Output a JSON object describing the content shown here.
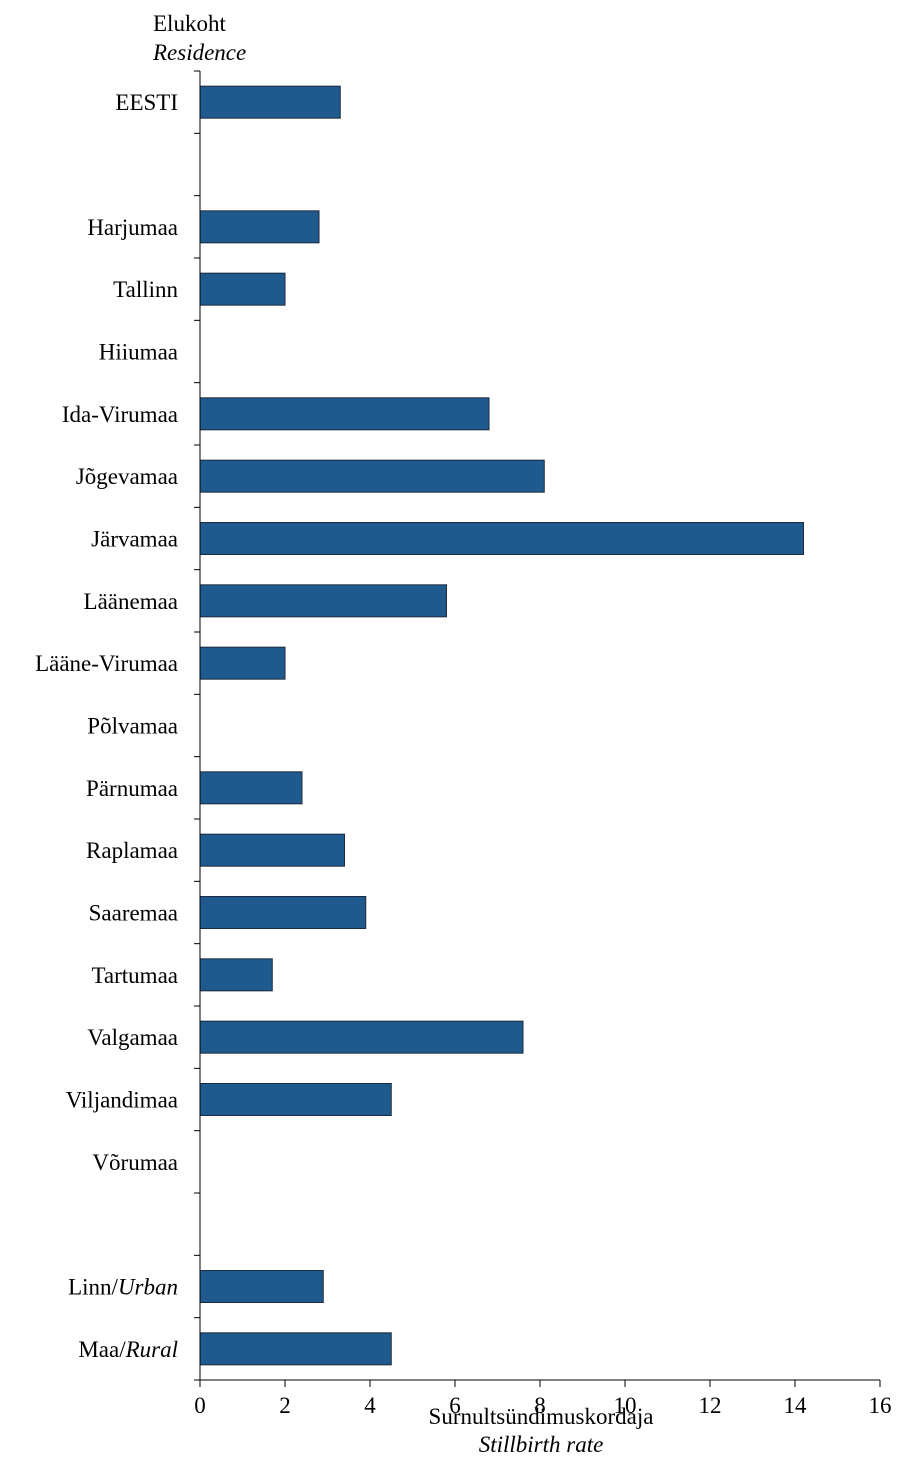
{
  "chart_data": {
    "type": "bar",
    "orientation": "horizontal",
    "y_axis_title": "Elukoht",
    "y_axis_title_en": "Residence",
    "xlabel": "Surnultsündimuskordaja",
    "xlabel_en": "Stillbirth rate",
    "xlim": [
      0,
      16
    ],
    "xticks": [
      0,
      2,
      4,
      6,
      8,
      10,
      12,
      14,
      16
    ],
    "grid": false,
    "bar_color": "#1f5a8f",
    "categories": [
      {
        "label": "EESTI",
        "label_en": "",
        "value": 3.3
      },
      {
        "label": "",
        "label_en": "",
        "value": null
      },
      {
        "label": "Harjumaa",
        "label_en": "",
        "value": 2.8
      },
      {
        "label": "Tallinn",
        "label_en": "",
        "value": 2.0
      },
      {
        "label": "Hiiumaa",
        "label_en": "",
        "value": null
      },
      {
        "label": "Ida-Virumaa",
        "label_en": "",
        "value": 6.8
      },
      {
        "label": "Jõgevamaa",
        "label_en": "",
        "value": 8.1
      },
      {
        "label": "Järvamaa",
        "label_en": "",
        "value": 14.2
      },
      {
        "label": "Läänemaa",
        "label_en": "",
        "value": 5.8
      },
      {
        "label": "Lääne-Virumaa",
        "label_en": "",
        "value": 2.0
      },
      {
        "label": "Põlvamaa",
        "label_en": "",
        "value": null
      },
      {
        "label": "Pärnumaa",
        "label_en": "",
        "value": 2.4
      },
      {
        "label": "Raplamaa",
        "label_en": "",
        "value": 3.4
      },
      {
        "label": "Saaremaa",
        "label_en": "",
        "value": 3.9
      },
      {
        "label": "Tartumaa",
        "label_en": "",
        "value": 1.7
      },
      {
        "label": "Valgamaa",
        "label_en": "",
        "value": 7.6
      },
      {
        "label": "Viljandimaa",
        "label_en": "",
        "value": 4.5
      },
      {
        "label": "Võrumaa",
        "label_en": "",
        "value": null
      },
      {
        "label": "",
        "label_en": "",
        "value": null
      },
      {
        "label": "Linn/",
        "label_en": "Urban",
        "value": 2.9
      },
      {
        "label": "Maa/",
        "label_en": "Rural",
        "value": 4.5
      }
    ]
  }
}
